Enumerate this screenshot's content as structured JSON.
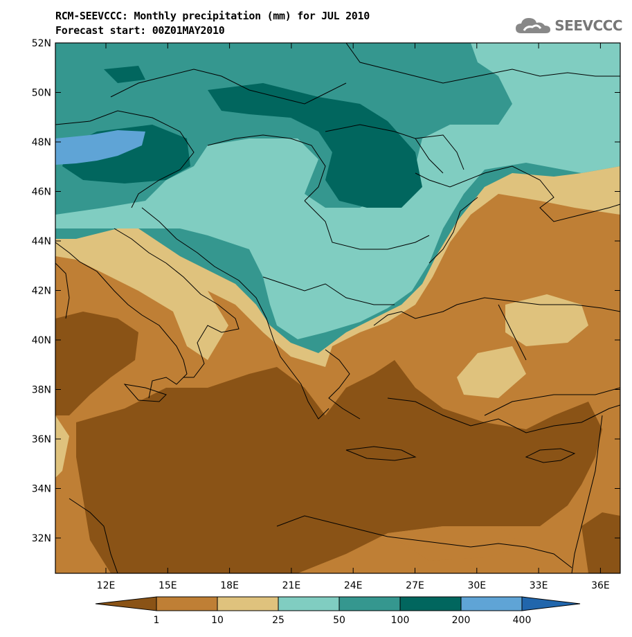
{
  "title": "RCM-SEEVCCC: Monthly precipitation (mm) for JUL 2010",
  "subtitle": "Forecast start: 00Z01MAY2010",
  "logo": {
    "text": "SEEVCCC",
    "icon": "cloud-logo-icon"
  },
  "map": {
    "lat_labels": [
      "52N",
      "50N",
      "48N",
      "46N",
      "44N",
      "42N",
      "40N",
      "38N",
      "36N",
      "34N",
      "32N"
    ],
    "lon_labels": [
      "12E",
      "15E",
      "18E",
      "21E",
      "24E",
      "27E",
      "30E",
      "33E",
      "36E"
    ]
  },
  "colorbar": {
    "unit": "mm",
    "levels": [
      "1",
      "10",
      "25",
      "50",
      "100",
      "200",
      "400"
    ],
    "colors": [
      "#8a5316",
      "#bf7f35",
      "#dfc27d",
      "#80cdc1",
      "#35978f",
      "#01665e",
      "#5fa4d6",
      "#2166ac"
    ]
  }
}
